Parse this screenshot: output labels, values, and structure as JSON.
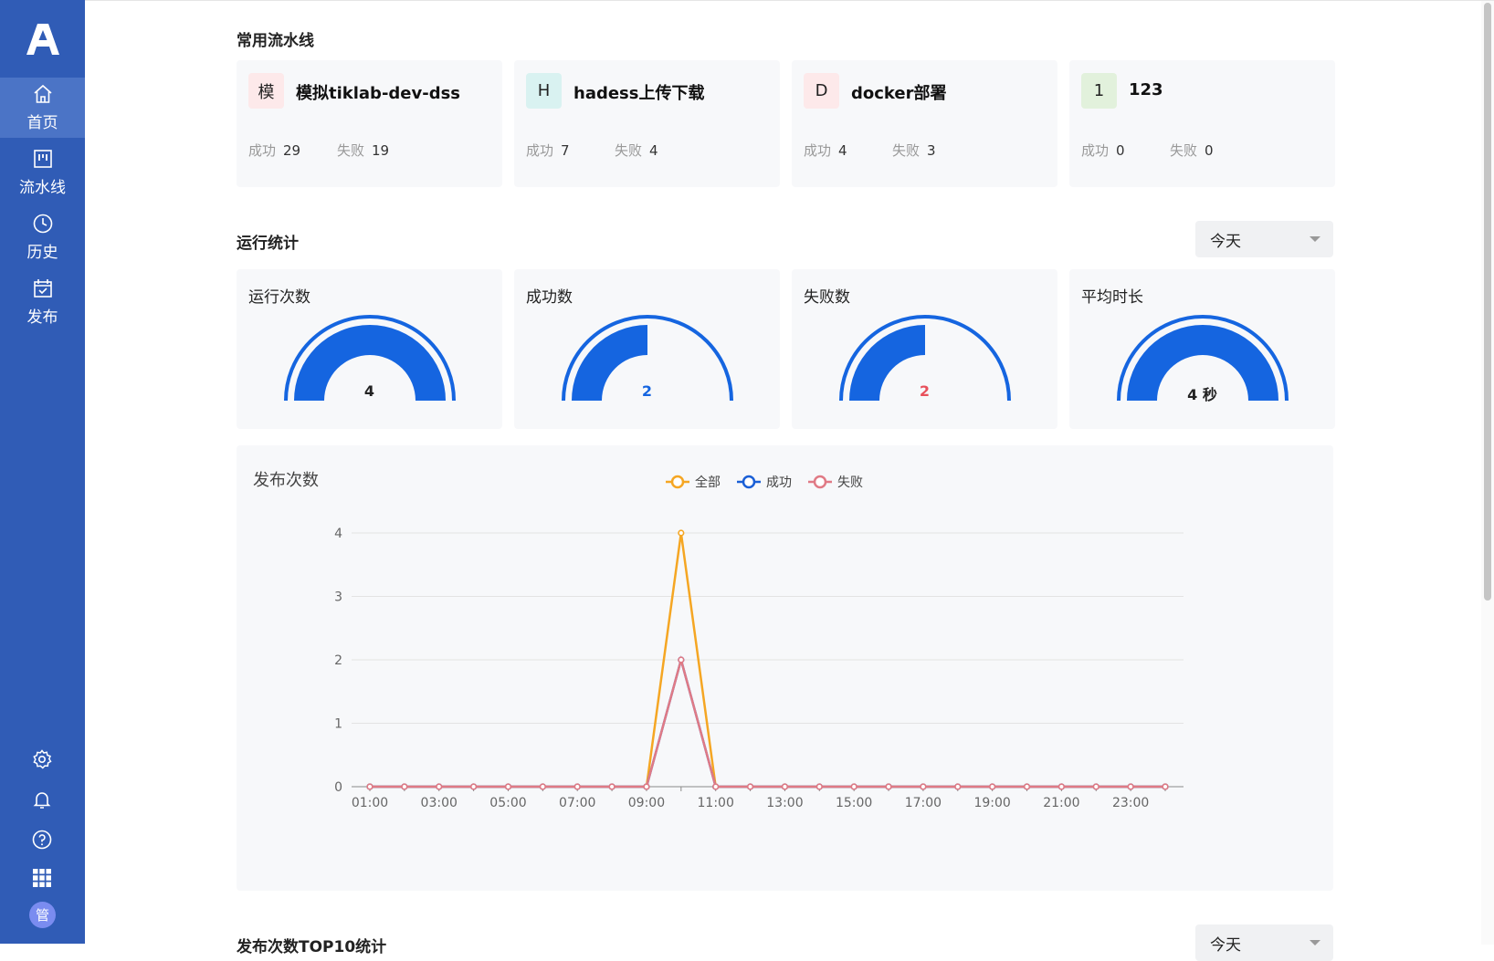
{
  "sidebar": {
    "logo": "A",
    "items": [
      {
        "label": "首页",
        "icon": "home-icon"
      },
      {
        "label": "流水线",
        "icon": "pipeline-icon"
      },
      {
        "label": "历史",
        "icon": "clock-icon"
      },
      {
        "label": "发布",
        "icon": "calendar-check-icon"
      }
    ],
    "bottom_icons": [
      "gear-icon",
      "bell-icon",
      "help-icon",
      "apps-grid-icon"
    ],
    "avatar": "管"
  },
  "common_pipelines": {
    "title": "常用流水线",
    "cards": [
      {
        "avatar": "模",
        "avatar_bg": "#fde9ea",
        "name": "模拟tiklab-dev-dss",
        "success_label": "成功",
        "success": "29",
        "fail_label": "失败",
        "fail": "19"
      },
      {
        "avatar": "H",
        "avatar_bg": "#d9f2f1",
        "name": "hadess上传下载",
        "success_label": "成功",
        "success": "7",
        "fail_label": "失败",
        "fail": "4"
      },
      {
        "avatar": "D",
        "avatar_bg": "#fde9ea",
        "name": "docker部署",
        "success_label": "成功",
        "success": "4",
        "fail_label": "失败",
        "fail": "3"
      },
      {
        "avatar": "1",
        "avatar_bg": "#e2f1dc",
        "name": "123",
        "success_label": "成功",
        "success": "0",
        "fail_label": "失败",
        "fail": "0"
      }
    ]
  },
  "run_stats": {
    "title": "运行统计",
    "period": "今天",
    "cards": [
      {
        "title": "运行次数",
        "value": "4",
        "fraction": 1.0,
        "value_color": "#222222"
      },
      {
        "title": "成功数",
        "value": "2",
        "fraction": 0.5,
        "value_color": "#1565e0"
      },
      {
        "title": "失败数",
        "value": "2",
        "fraction": 0.5,
        "value_color": "#e8505b"
      },
      {
        "title": "平均时长",
        "value": "4 秒",
        "fraction": 1.0,
        "value_color": "#222222"
      }
    ]
  },
  "chart_data": {
    "type": "line",
    "title": "发布次数",
    "x": [
      "01:00",
      "02:00",
      "03:00",
      "04:00",
      "05:00",
      "06:00",
      "07:00",
      "08:00",
      "09:00",
      "10:00",
      "11:00",
      "12:00",
      "13:00",
      "14:00",
      "15:00",
      "16:00",
      "17:00",
      "18:00",
      "19:00",
      "20:00",
      "21:00",
      "22:00",
      "23:00",
      "24:00"
    ],
    "x_tick_labels": [
      "01:00",
      "03:00",
      "05:00",
      "07:00",
      "09:00",
      "11:00",
      "13:00",
      "15:00",
      "17:00",
      "19:00",
      "21:00",
      "23:00"
    ],
    "y_ticks": [
      "0",
      "1",
      "2",
      "3",
      "4"
    ],
    "ylim": [
      0,
      4
    ],
    "grid": true,
    "legend_position": "top-center",
    "series": [
      {
        "name": "全部",
        "color": "#f5a623",
        "values": [
          0,
          0,
          0,
          0,
          0,
          0,
          0,
          0,
          0,
          4,
          0,
          0,
          0,
          0,
          0,
          0,
          0,
          0,
          0,
          0,
          0,
          0,
          0,
          0
        ]
      },
      {
        "name": "成功",
        "color": "#1a5fd6",
        "values": [
          0,
          0,
          0,
          0,
          0,
          0,
          0,
          0,
          0,
          2,
          0,
          0,
          0,
          0,
          0,
          0,
          0,
          0,
          0,
          0,
          0,
          0,
          0,
          0
        ]
      },
      {
        "name": "失败",
        "color": "#e07a85",
        "values": [
          0,
          0,
          0,
          0,
          0,
          0,
          0,
          0,
          0,
          2,
          0,
          0,
          0,
          0,
          0,
          0,
          0,
          0,
          0,
          0,
          0,
          0,
          0,
          0
        ]
      }
    ]
  },
  "top10": {
    "title": "发布次数TOP10统计",
    "period": "今天"
  },
  "colors": {
    "sidebar": "#305cb6",
    "accent": "#1565e0",
    "gauge": "#1565e0"
  }
}
